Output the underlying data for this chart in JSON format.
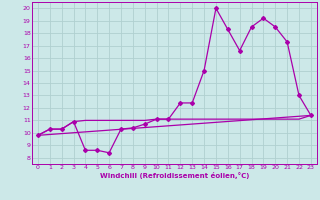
{
  "bg_color": "#cce8e8",
  "grid_color": "#b0d0d0",
  "line_color": "#aa00aa",
  "xlabel": "Windchill (Refroidissement éolien,°C)",
  "xlim": [
    -0.5,
    23.5
  ],
  "ylim": [
    7.5,
    20.5
  ],
  "xticks": [
    0,
    1,
    2,
    3,
    4,
    5,
    6,
    7,
    8,
    9,
    10,
    11,
    12,
    13,
    14,
    15,
    16,
    17,
    18,
    19,
    20,
    21,
    22,
    23
  ],
  "yticks": [
    8,
    9,
    10,
    11,
    12,
    13,
    14,
    15,
    16,
    17,
    18,
    19,
    20
  ],
  "line1_x": [
    0,
    1,
    2,
    3,
    4,
    5,
    6,
    7,
    8,
    9,
    10,
    11,
    12,
    13,
    14,
    15,
    16,
    17,
    18,
    19,
    20,
    21,
    22,
    23
  ],
  "line1_y": [
    9.8,
    10.3,
    10.3,
    10.9,
    8.6,
    8.6,
    8.4,
    10.3,
    10.4,
    10.7,
    11.1,
    11.1,
    12.4,
    12.4,
    15.0,
    20.0,
    18.3,
    16.6,
    18.5,
    19.2,
    18.5,
    17.3,
    13.0,
    11.4
  ],
  "line2_x": [
    0,
    1,
    2,
    3,
    4,
    5,
    6,
    7,
    8,
    9,
    10,
    11,
    12,
    13,
    14,
    15,
    16,
    17,
    18,
    19,
    20,
    21,
    22,
    23
  ],
  "line2_y": [
    9.8,
    10.3,
    10.3,
    10.9,
    11.0,
    11.0,
    11.0,
    11.0,
    11.0,
    11.0,
    11.1,
    11.1,
    11.1,
    11.1,
    11.1,
    11.1,
    11.1,
    11.1,
    11.1,
    11.1,
    11.1,
    11.1,
    11.1,
    11.4
  ],
  "line3_x": [
    0,
    23
  ],
  "line3_y": [
    9.8,
    11.4
  ]
}
